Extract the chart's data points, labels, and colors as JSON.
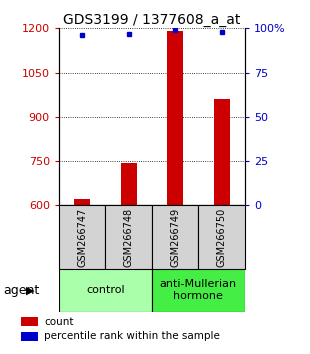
{
  "title": "GDS3199 / 1377608_a_at",
  "samples": [
    "GSM266747",
    "GSM266748",
    "GSM266749",
    "GSM266750"
  ],
  "counts": [
    620,
    745,
    1190,
    960
  ],
  "percentiles": [
    96,
    97,
    99,
    98
  ],
  "ylim_left": [
    600,
    1200
  ],
  "ylim_right": [
    0,
    100
  ],
  "yticks_left": [
    600,
    750,
    900,
    1050,
    1200
  ],
  "yticks_right": [
    0,
    25,
    50,
    75,
    100
  ],
  "bar_color": "#cc0000",
  "dot_color": "#0000cc",
  "groups": [
    {
      "label": "control",
      "samples": [
        0,
        1
      ],
      "color": "#aaffaa"
    },
    {
      "label": "anti-Mullerian\nhormone",
      "samples": [
        2,
        3
      ],
      "color": "#44ee44"
    }
  ],
  "group_label": "agent",
  "legend_items": [
    {
      "color": "#cc0000",
      "label": "count"
    },
    {
      "color": "#0000cc",
      "label": "percentile rank within the sample"
    }
  ],
  "title_fontsize": 10,
  "tick_fontsize": 8,
  "sample_fontsize": 7,
  "group_fontsize": 8,
  "legend_fontsize": 7.5,
  "bar_width": 0.35
}
